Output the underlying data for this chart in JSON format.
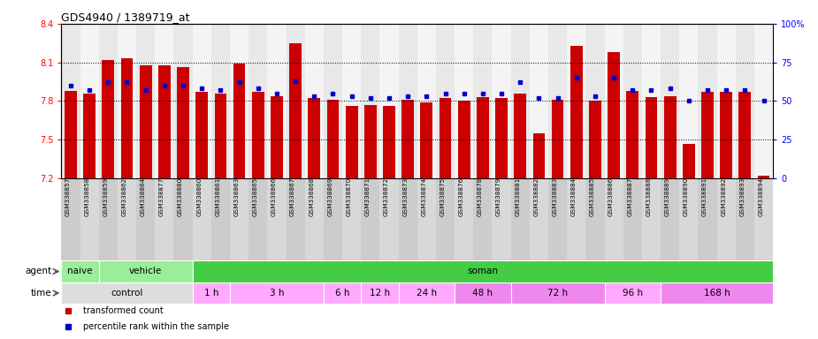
{
  "title": "GDS4940 / 1389719_at",
  "samples": [
    "GSM338857",
    "GSM338858",
    "GSM338859",
    "GSM338862",
    "GSM338864",
    "GSM338877",
    "GSM338880",
    "GSM338860",
    "GSM338861",
    "GSM338863",
    "GSM338865",
    "GSM338866",
    "GSM338867",
    "GSM338868",
    "GSM338869",
    "GSM338870",
    "GSM338871",
    "GSM338872",
    "GSM338873",
    "GSM338874",
    "GSM338875",
    "GSM338876",
    "GSM338878",
    "GSM338879",
    "GSM338881",
    "GSM338882",
    "GSM338883",
    "GSM338884",
    "GSM338885",
    "GSM338886",
    "GSM338887",
    "GSM338888",
    "GSM338889",
    "GSM338890",
    "GSM338891",
    "GSM338892",
    "GSM338893",
    "GSM338894"
  ],
  "red_values": [
    7.88,
    7.86,
    8.12,
    8.13,
    8.08,
    8.08,
    8.06,
    7.87,
    7.86,
    8.09,
    7.87,
    7.84,
    8.25,
    7.82,
    7.81,
    7.76,
    7.77,
    7.76,
    7.81,
    7.79,
    7.82,
    7.8,
    7.83,
    7.82,
    7.86,
    7.55,
    7.81,
    8.23,
    7.8,
    8.18,
    7.88,
    7.83,
    7.84,
    7.47,
    7.87,
    7.87,
    7.87,
    7.22
  ],
  "blue_values": [
    60,
    57,
    62,
    62,
    57,
    60,
    60,
    58,
    57,
    62,
    58,
    55,
    63,
    53,
    55,
    53,
    52,
    52,
    53,
    53,
    55,
    55,
    55,
    55,
    62,
    52,
    52,
    65,
    53,
    65,
    57,
    57,
    58,
    50,
    57,
    57,
    57,
    50
  ],
  "ylim_left": [
    7.2,
    8.4
  ],
  "ylim_right": [
    0,
    100
  ],
  "yticks_left": [
    7.2,
    7.5,
    7.8,
    8.1,
    8.4
  ],
  "yticks_right": [
    0,
    25,
    50,
    75,
    100
  ],
  "bar_color": "#cc0000",
  "dot_color": "#0000cc",
  "agent_groups": [
    {
      "label": "naive",
      "start": 0,
      "end": 2,
      "color": "#99ee99"
    },
    {
      "label": "vehicle",
      "start": 2,
      "end": 7,
      "color": "#99ee99"
    },
    {
      "label": "soman",
      "start": 7,
      "end": 38,
      "color": "#44cc44"
    }
  ],
  "time_groups": [
    {
      "label": "control",
      "start": 0,
      "end": 7,
      "color": "#dddddd"
    },
    {
      "label": "1 h",
      "start": 7,
      "end": 9,
      "color": "#ffaaff"
    },
    {
      "label": "3 h",
      "start": 9,
      "end": 14,
      "color": "#ffaaff"
    },
    {
      "label": "6 h",
      "start": 14,
      "end": 16,
      "color": "#ffaaff"
    },
    {
      "label": "12 h",
      "start": 16,
      "end": 18,
      "color": "#ffaaff"
    },
    {
      "label": "24 h",
      "start": 18,
      "end": 21,
      "color": "#ffaaff"
    },
    {
      "label": "48 h",
      "start": 21,
      "end": 24,
      "color": "#ee88ee"
    },
    {
      "label": "72 h",
      "start": 24,
      "end": 29,
      "color": "#ee88ee"
    },
    {
      "label": "96 h",
      "start": 29,
      "end": 32,
      "color": "#ffaaff"
    },
    {
      "label": "168 h",
      "start": 32,
      "end": 38,
      "color": "#ee88ee"
    }
  ],
  "legend_items": [
    {
      "label": "transformed count",
      "color": "#cc0000"
    },
    {
      "label": "percentile rank within the sample",
      "color": "#0000cc"
    }
  ]
}
